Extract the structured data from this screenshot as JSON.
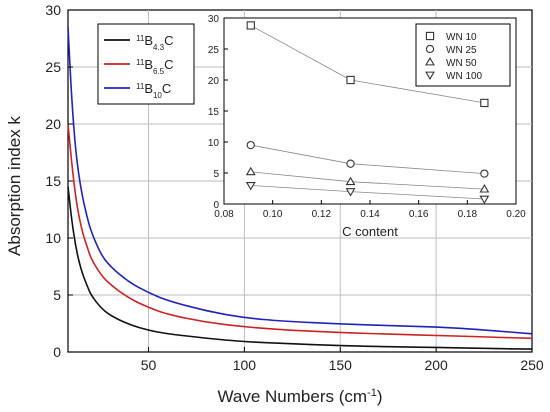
{
  "chart_data": [
    {
      "type": "line",
      "xlabel_text": "Wave Numbers (cm",
      "xlabel_sup": "-1",
      "xlabel_close": ")",
      "ylabel": "Absorption index k",
      "xlim": [
        8,
        250
      ],
      "ylim": [
        0,
        30
      ],
      "xticks": [
        50,
        100,
        150,
        200,
        250
      ],
      "yticks": [
        0,
        5,
        10,
        15,
        20,
        25,
        30
      ],
      "grid": true,
      "legend_position": "top-left",
      "series": [
        {
          "name_main": "11",
          "name_b": "B",
          "name_sub": "4.3",
          "name_c": "C",
          "color": "#111111",
          "x": [
            8,
            10,
            12,
            15,
            18,
            20,
            25,
            30,
            40,
            50,
            60,
            80,
            100,
            120,
            150,
            180,
            200,
            220,
            250
          ],
          "y": [
            14.5,
            11.5,
            9.2,
            7.1,
            5.8,
            5.0,
            3.9,
            3.2,
            2.4,
            1.9,
            1.6,
            1.2,
            0.9,
            0.75,
            0.55,
            0.45,
            0.4,
            0.33,
            0.25
          ]
        },
        {
          "name_main": "11",
          "name_b": "B",
          "name_sub": "6.5",
          "name_c": "C",
          "color": "#cc2222",
          "x": [
            8,
            10,
            12,
            15,
            18,
            20,
            25,
            30,
            40,
            50,
            60,
            80,
            100,
            120,
            150,
            180,
            200,
            220,
            250
          ],
          "y": [
            20.0,
            16.5,
            13.5,
            10.8,
            9.2,
            8.2,
            6.8,
            5.9,
            4.7,
            3.9,
            3.3,
            2.6,
            2.2,
            1.95,
            1.7,
            1.55,
            1.45,
            1.35,
            1.2
          ]
        },
        {
          "name_main": "11",
          "name_b": "B",
          "name_sub": "10",
          "name_c": "C",
          "color": "#2222bb",
          "x": [
            8,
            10,
            12,
            15,
            18,
            20,
            25,
            30,
            40,
            50,
            60,
            80,
            100,
            120,
            150,
            180,
            200,
            220,
            250
          ],
          "y": [
            28.5,
            22.0,
            17.5,
            14.0,
            11.8,
            10.6,
            8.6,
            7.5,
            6.1,
            5.2,
            4.5,
            3.6,
            3.0,
            2.7,
            2.45,
            2.3,
            2.2,
            2.0,
            1.6
          ]
        }
      ]
    },
    {
      "type": "scatter",
      "xlabel": "C content",
      "ylabel": "",
      "xlim": [
        0.08,
        0.2
      ],
      "ylim": [
        0,
        30
      ],
      "xticks": [
        "0.08",
        "0.10",
        "0.12",
        "0.14",
        "0.16",
        "0.18",
        "0.20"
      ],
      "yticks": [
        0,
        5,
        10,
        15,
        20,
        25,
        30
      ],
      "grid": false,
      "legend_position": "top-right",
      "categories": [
        0.091,
        0.132,
        0.187
      ],
      "series": [
        {
          "name": "WN  10",
          "marker": "square",
          "values": [
            28.8,
            20.0,
            16.3
          ]
        },
        {
          "name": "WN  25",
          "marker": "circle",
          "values": [
            9.5,
            6.5,
            4.9
          ]
        },
        {
          "name": "WN  50",
          "marker": "triangle-up",
          "values": [
            5.2,
            3.6,
            2.4
          ]
        },
        {
          "name": "WN  100",
          "marker": "triangle-down",
          "values": [
            3.0,
            2.0,
            0.8
          ]
        }
      ]
    }
  ]
}
